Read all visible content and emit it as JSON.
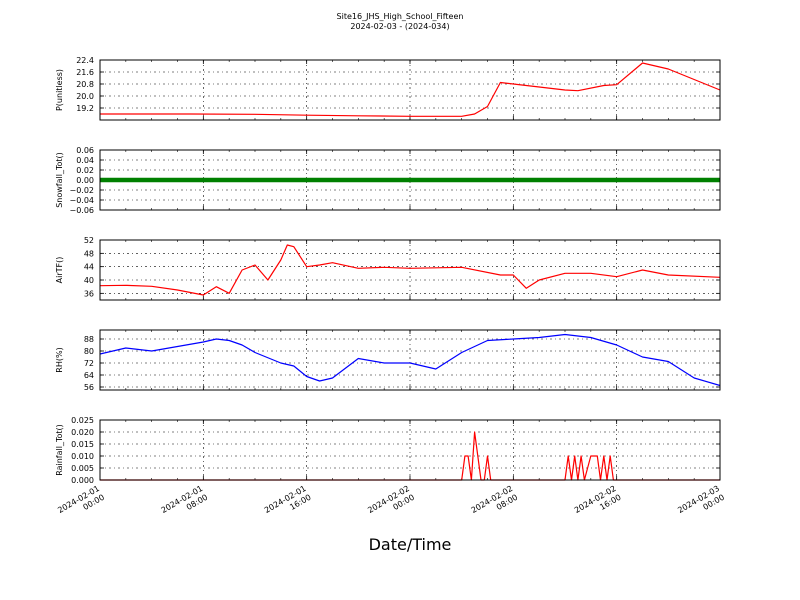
{
  "figure": {
    "title": "Site16_JHS_High_School_Fifteen",
    "subtitle": "2024-02-03 - (2024-034)",
    "xlabel": "Date/Time"
  },
  "chart_data": [
    {
      "type": "line",
      "ylabel": "P(unitless)",
      "ylim": [
        18.4,
        22.4
      ],
      "yticks": [
        "19.2",
        "20.0",
        "20.8",
        "21.6",
        "22.4"
      ],
      "xlim": [
        "2024-02-01 00:00",
        "2024-02-03 00:00"
      ],
      "grid": true,
      "series": [
        {
          "color": "#ff0000",
          "x": [
            "2024-02-01 00:00",
            "2024-02-01 04:00",
            "2024-02-01 07:00",
            "2024-02-01 12:00",
            "2024-02-01 16:00",
            "2024-02-01 20:00",
            "2024-02-02 00:00",
            "2024-02-02 04:00",
            "2024-02-02 05:00",
            "2024-02-02 06:00",
            "2024-02-02 07:00",
            "2024-02-02 08:00",
            "2024-02-02 10:00",
            "2024-02-02 11:00",
            "2024-02-02 12:00",
            "2024-02-02 13:00",
            "2024-02-02 15:00",
            "2024-02-02 16:00",
            "2024-02-02 18:00",
            "2024-02-02 20:00",
            "2024-02-03 00:00"
          ],
          "y": [
            18.8,
            18.8,
            18.8,
            18.78,
            18.72,
            18.68,
            18.65,
            18.65,
            18.8,
            19.3,
            20.9,
            20.8,
            20.6,
            20.5,
            20.4,
            20.35,
            20.7,
            20.75,
            22.2,
            21.8,
            20.4
          ]
        }
      ]
    },
    {
      "type": "scatter",
      "ylabel": "Snowfall_Tot()",
      "ylim": [
        -0.06,
        0.06
      ],
      "yticks": [
        "−0.06",
        "−0.04",
        "−0.02",
        "0.00",
        "0.02",
        "0.04",
        "0.06"
      ],
      "xlim": [
        "2024-02-01 00:00",
        "2024-02-03 00:00"
      ],
      "grid": true,
      "series": [
        {
          "color": "#008000",
          "x": [
            "2024-02-01 00:00",
            "2024-02-03 00:00"
          ],
          "y": [
            0,
            0
          ]
        }
      ]
    },
    {
      "type": "line",
      "ylabel": "AirTF()",
      "ylim": [
        34,
        52
      ],
      "yticks": [
        "36",
        "40",
        "44",
        "48",
        "52"
      ],
      "xlim": [
        "2024-02-01 00:00",
        "2024-02-03 00:00"
      ],
      "grid": true,
      "series": [
        {
          "color": "#ff0000",
          "x": [
            "2024-02-01 00:00",
            "2024-02-01 02:00",
            "2024-02-01 04:00",
            "2024-02-01 06:00",
            "2024-02-01 08:00",
            "2024-02-01 09:00",
            "2024-02-01 10:00",
            "2024-02-01 11:00",
            "2024-02-01 12:00",
            "2024-02-01 13:00",
            "2024-02-01 14:00",
            "2024-02-01 14:30",
            "2024-02-01 15:00",
            "2024-02-01 16:00",
            "2024-02-01 17:00",
            "2024-02-01 18:00",
            "2024-02-01 20:00",
            "2024-02-01 22:00",
            "2024-02-02 00:00",
            "2024-02-02 04:00",
            "2024-02-02 07:00",
            "2024-02-02 08:00",
            "2024-02-02 09:00",
            "2024-02-02 10:00",
            "2024-02-02 12:00",
            "2024-02-02 14:00",
            "2024-02-02 16:00",
            "2024-02-02 18:00",
            "2024-02-02 20:00",
            "2024-02-03 00:00"
          ],
          "y": [
            38.3,
            38.4,
            38.1,
            37.0,
            35.5,
            38.0,
            36.0,
            43.0,
            44.5,
            40.0,
            46.0,
            50.5,
            50.0,
            44.0,
            44.5,
            45.2,
            43.5,
            43.8,
            43.5,
            43.8,
            41.5,
            41.5,
            37.5,
            40.0,
            42.0,
            42.0,
            41.0,
            43.0,
            41.5,
            40.8
          ]
        }
      ]
    },
    {
      "type": "line",
      "ylabel": "RH(%)",
      "ylim": [
        54,
        94
      ],
      "yticks": [
        "56",
        "64",
        "72",
        "80",
        "88"
      ],
      "xlim": [
        "2024-02-01 00:00",
        "2024-02-03 00:00"
      ],
      "grid": true,
      "series": [
        {
          "color": "#0000ff",
          "x": [
            "2024-02-01 00:00",
            "2024-02-01 02:00",
            "2024-02-01 04:00",
            "2024-02-01 06:00",
            "2024-02-01 08:00",
            "2024-02-01 09:00",
            "2024-02-01 10:00",
            "2024-02-01 11:00",
            "2024-02-01 12:00",
            "2024-02-01 14:00",
            "2024-02-01 15:00",
            "2024-02-01 16:00",
            "2024-02-01 17:00",
            "2024-02-01 18:00",
            "2024-02-01 20:00",
            "2024-02-01 22:00",
            "2024-02-02 00:00",
            "2024-02-02 02:00",
            "2024-02-02 04:00",
            "2024-02-02 06:00",
            "2024-02-02 08:00",
            "2024-02-02 10:00",
            "2024-02-02 12:00",
            "2024-02-02 14:00",
            "2024-02-02 16:00",
            "2024-02-02 18:00",
            "2024-02-02 20:00",
            "2024-02-02 22:00",
            "2024-02-03 00:00"
          ],
          "y": [
            78,
            82,
            80,
            83,
            86,
            88,
            87,
            84,
            79,
            72,
            70,
            63,
            60,
            62,
            75,
            72,
            72,
            68,
            79,
            87,
            88,
            89,
            91,
            89,
            84,
            76,
            73,
            62,
            57
          ]
        }
      ]
    },
    {
      "type": "line",
      "ylabel": "Rainfall_Tot()",
      "ylim": [
        0.0,
        0.025
      ],
      "yticks": [
        "0.000",
        "0.005",
        "0.010",
        "0.015",
        "0.020",
        "0.025"
      ],
      "xlim": [
        "2024-02-01 00:00",
        "2024-02-03 00:00"
      ],
      "grid": true,
      "series": [
        {
          "color": "#ff0000",
          "x": [
            "2024-02-01 00:00",
            "2024-02-02 04:00",
            "2024-02-02 04:15",
            "2024-02-02 04:30",
            "2024-02-02 04:45",
            "2024-02-02 05:00",
            "2024-02-02 05:15",
            "2024-02-02 05:30",
            "2024-02-02 05:45",
            "2024-02-02 06:00",
            "2024-02-02 06:15",
            "2024-02-02 06:30",
            "2024-02-02 12:00",
            "2024-02-02 12:15",
            "2024-02-02 12:30",
            "2024-02-02 12:45",
            "2024-02-02 13:00",
            "2024-02-02 13:15",
            "2024-02-02 13:30",
            "2024-02-02 14:00",
            "2024-02-02 14:30",
            "2024-02-02 14:45",
            "2024-02-02 15:00",
            "2024-02-02 15:15",
            "2024-02-02 15:30",
            "2024-02-02 15:45",
            "2024-02-03 00:00"
          ],
          "y": [
            0,
            0,
            0.01,
            0.01,
            0,
            0.02,
            0.01,
            0,
            0,
            0.01,
            0,
            0,
            0,
            0.01,
            0,
            0.01,
            0,
            0.01,
            0,
            0.01,
            0.01,
            0,
            0.01,
            0,
            0.01,
            0,
            0
          ]
        }
      ]
    }
  ],
  "x_axis": {
    "ticks": [
      {
        "line1": "2024-02-01",
        "line2": "00:00"
      },
      {
        "line1": "2024-02-01",
        "line2": "08:00"
      },
      {
        "line1": "2024-02-01",
        "line2": "16:00"
      },
      {
        "line1": "2024-02-02",
        "line2": "00:00"
      },
      {
        "line1": "2024-02-02",
        "line2": "08:00"
      },
      {
        "line1": "2024-02-02",
        "line2": "16:00"
      },
      {
        "line1": "2024-02-03",
        "line2": "00:00"
      }
    ]
  }
}
